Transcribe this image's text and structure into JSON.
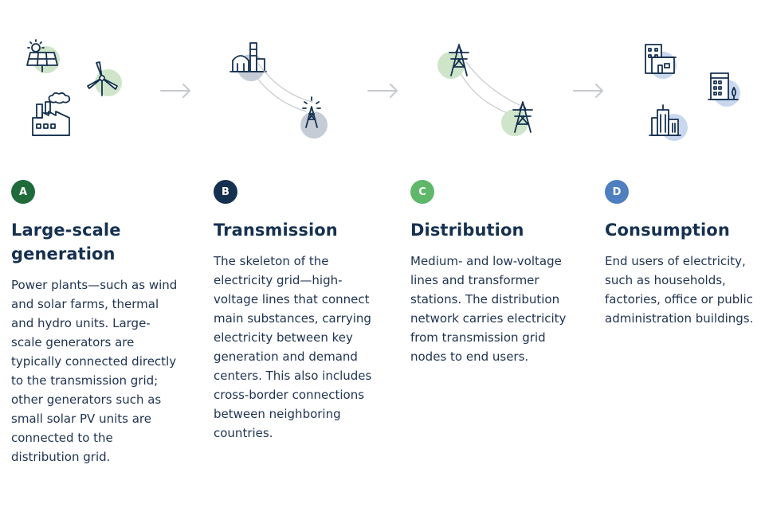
{
  "colors": {
    "navy": "#163150",
    "arrow": "#c6c9ce",
    "green_badge": "#1f6b3a",
    "navy_badge": "#163150",
    "light_green_badge": "#5fb86a",
    "blue_badge": "#4f7fbf",
    "green_circle": "#cfe5c9",
    "grey_circle": "#c5ccd6",
    "blue_circle": "#c9d8ee"
  },
  "stages": [
    {
      "badge": "A",
      "title_line1": "Large-scale",
      "title_line2": "generation",
      "description": "Power plants—such as wind and solar farms, thermal and hydro units. Large-scale generators are typically connected directly to the transmission grid; other generators such as small solar PV units are connected to the distribution grid.",
      "icons": [
        "solar-panel-icon",
        "wind-turbine-icon",
        "factory-icon"
      ]
    },
    {
      "badge": "B",
      "title": "Transmission",
      "description": "The skeleton of the electricity grid—high-voltage lines that connect main substances, carrying electricity between key generation and demand centers. This also includes cross-border connections between neighboring countries.",
      "icons": [
        "power-plant-icon",
        "transmission-tower-icon"
      ]
    },
    {
      "badge": "C",
      "title": "Distribution",
      "description": "Medium- and low-voltage lines and transformer stations. The distribution network carries electricity from transmission grid nodes to end users.",
      "icons": [
        "pylon-icon",
        "pylon-icon"
      ]
    },
    {
      "badge": "D",
      "title": "Consumption",
      "description": "End users of electricity, such as households, factories, office or public administration buildings.",
      "icons": [
        "office-building-icon",
        "apartment-building-icon",
        "city-buildings-icon"
      ]
    }
  ]
}
